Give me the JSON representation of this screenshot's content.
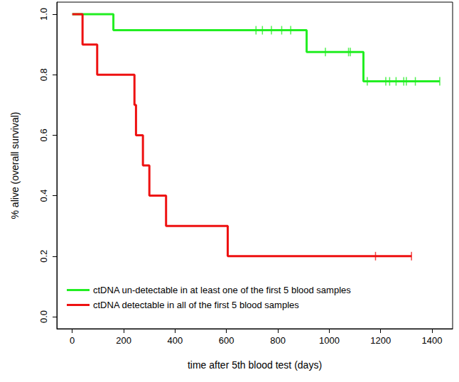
{
  "chart_data": {
    "type": "line",
    "line_style": "step",
    "x_label": "time after 5th blood test (days)",
    "y_label": "% alive (overall survival)",
    "xlim": [
      -60,
      1480
    ],
    "xticks": [
      0,
      200,
      400,
      600,
      800,
      1000,
      1200,
      1400
    ],
    "ylim": [
      -0.04,
      1.04
    ],
    "yticks": [
      {
        "value": 0,
        "label": "0.0"
      },
      {
        "value": 0.2,
        "label": "0.2"
      },
      {
        "value": 0.4,
        "label": "0.4"
      },
      {
        "value": 0.6,
        "label": "0.6"
      },
      {
        "value": 0.8,
        "label": "0.8"
      },
      {
        "value": 1,
        "label": "1.0"
      }
    ],
    "grid": false,
    "legend": "bottom left",
    "series": [
      {
        "name": "ctDNA un-detectable in at least one of the first 5 blood samples",
        "color": "#22ee22",
        "marker": "|",
        "x": [
          0,
          160,
          912,
          1133,
          1430
        ],
        "values": [
          1.0,
          0.947,
          0.875,
          0.778,
          0.778
        ],
        "censored": {
          "x": [
            715,
            740,
            775,
            815,
            850,
            985,
            1075,
            1082,
            1148,
            1220,
            1235,
            1260,
            1290,
            1300,
            1335,
            1430
          ],
          "values": [
            0.947,
            0.947,
            0.947,
            0.947,
            0.947,
            0.875,
            0.875,
            0.875,
            0.778,
            0.778,
            0.778,
            0.778,
            0.778,
            0.778,
            0.778,
            0.778
          ]
        }
      },
      {
        "name": "ctDNA detectable in all of the first 5 blood samples",
        "color": "#ee1111",
        "marker": "|",
        "x": [
          0,
          40,
          97,
          242,
          248,
          275,
          300,
          365,
          605,
          1320
        ],
        "values": [
          1.0,
          0.9,
          0.8,
          0.7,
          0.6,
          0.5,
          0.4,
          0.3,
          0.2,
          0.2
        ],
        "censored": {
          "x": [
            1180,
            1320
          ],
          "values": [
            0.2,
            0.2
          ]
        }
      }
    ]
  }
}
